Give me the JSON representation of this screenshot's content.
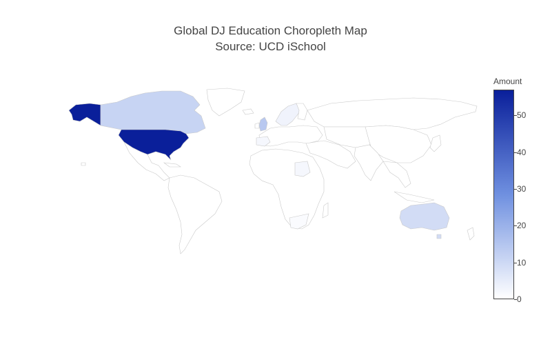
{
  "title_line1": "Global DJ Education Choropleth Map",
  "title_line2": "Source: UCD iSchool",
  "colorbar": {
    "title": "Amount",
    "ticks": [
      "0",
      "10",
      "20",
      "30",
      "40",
      "50"
    ],
    "min": 0,
    "max": 57,
    "colors": {
      "low": "#ffffff",
      "mid": "#6f90e0",
      "high": "#0a1f9a"
    }
  },
  "map_data": {
    "type": "choropleth",
    "projection": "equirectangular",
    "regions": [
      {
        "name": "United States",
        "value": 57
      },
      {
        "name": "Canada",
        "value": 11
      },
      {
        "name": "Australia",
        "value": 9
      },
      {
        "name": "United Kingdom",
        "value": 14
      },
      {
        "name": "Sweden",
        "value": 3
      },
      {
        "name": "Norway",
        "value": 2
      },
      {
        "name": "Germany",
        "value": 3
      },
      {
        "name": "Netherlands",
        "value": 5
      },
      {
        "name": "Spain",
        "value": 2
      },
      {
        "name": "Greece",
        "value": 2
      },
      {
        "name": "Egypt",
        "value": 2
      },
      {
        "name": "South Africa",
        "value": 1
      },
      {
        "name": "Portugal",
        "value": 1
      }
    ]
  }
}
